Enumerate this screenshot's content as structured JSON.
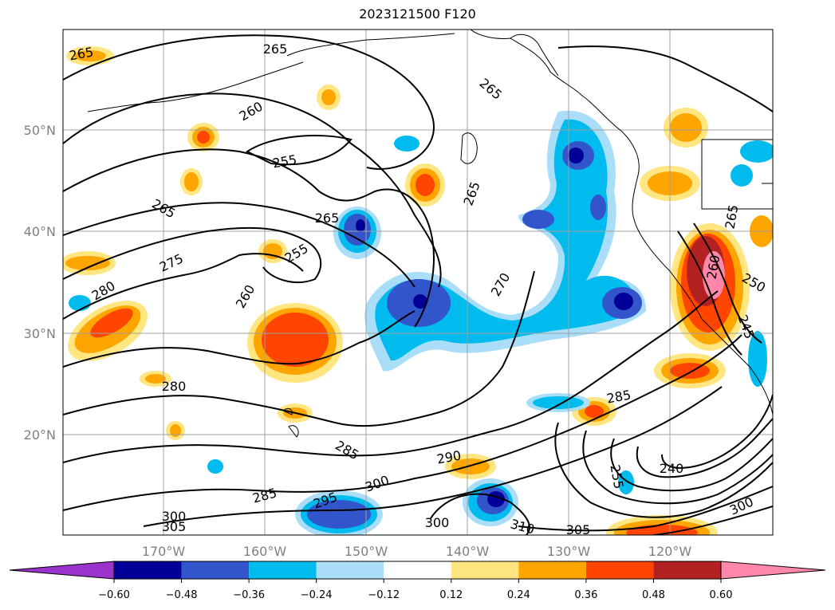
{
  "title": "2023121500 F120",
  "map": {
    "latitudes": [
      "50°N",
      "40°N",
      "30°N",
      "20°N"
    ],
    "longitudes": [
      "170°W",
      "160°W",
      "150°W",
      "140°W",
      "130°W",
      "120°W"
    ],
    "contour_labels": [
      "265",
      "265",
      "265",
      "260",
      "255",
      "265",
      "265",
      "265",
      "275",
      "255",
      "260",
      "280",
      "270",
      "260",
      "250",
      "280",
      "285",
      "285",
      "290",
      "255",
      "240",
      "300",
      "295",
      "300",
      "285",
      "300",
      "305",
      "300",
      "310",
      "305",
      "245",
      "265"
    ],
    "land_color": "#ffffff",
    "coast_color": "#000000"
  },
  "colorbar": {
    "ticks": [
      "−0.60",
      "−0.48",
      "−0.36",
      "−0.24",
      "−0.12",
      "0.12",
      "0.24",
      "0.36",
      "0.48",
      "0.60"
    ],
    "colors": [
      "#9933cc",
      "#000099",
      "#3355cc",
      "#00bbee",
      "#aaddf8",
      "#ffffff",
      "#ffe680",
      "#ffa500",
      "#ff4500",
      "#b22222",
      "#ff88aa"
    ]
  }
}
